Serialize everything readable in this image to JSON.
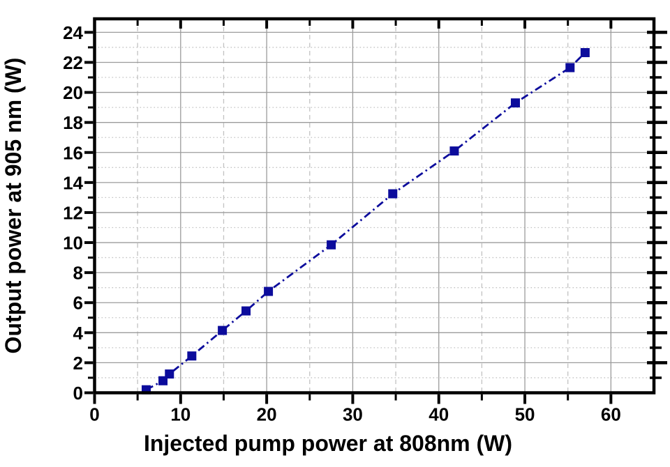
{
  "figure": {
    "background": "#ffffff"
  },
  "chart_data": {
    "type": "scatter",
    "title": "",
    "xlabel": "Injected pump power at 808nm (W)",
    "ylabel": "Output power at 905 nm (W)",
    "series": [
      {
        "name": "output-power-vs-pump-power",
        "x": [
          6.0,
          7.95,
          8.7,
          11.3,
          14.85,
          17.6,
          20.2,
          27.5,
          34.65,
          41.8,
          48.9,
          55.25,
          57.0
        ],
        "y": [
          0.2,
          0.8,
          1.25,
          2.45,
          4.15,
          5.45,
          6.75,
          9.85,
          13.25,
          16.1,
          19.3,
          21.65,
          22.65
        ],
        "marker": "square",
        "marker_size": 13,
        "marker_color": "#0c0c9c",
        "line_style": "dash-dot",
        "line_color": "#0c0c9c"
      }
    ],
    "xlim": [
      0,
      65
    ],
    "ylim": [
      0,
      24.9
    ],
    "x_major_tick_step": 10,
    "x_minor_tick_step": 5,
    "y_major_tick_step": 2,
    "y_minor_tick_step": 1,
    "x_tick_labels": [
      "0",
      "10",
      "20",
      "30",
      "40",
      "50",
      "60"
    ],
    "y_tick_labels": [
      "0",
      "2",
      "4",
      "6",
      "8",
      "10",
      "12",
      "14",
      "16",
      "18",
      "20",
      "22",
      "24"
    ],
    "grid": {
      "shown": true,
      "major_color": "#9b9b9b",
      "minor_color": "#c2c2c2",
      "major_style": "solid",
      "minor_style_horizontal": "dotted",
      "minor_style_vertical": "dashed"
    },
    "legend": null,
    "axis_color": "#000000"
  }
}
